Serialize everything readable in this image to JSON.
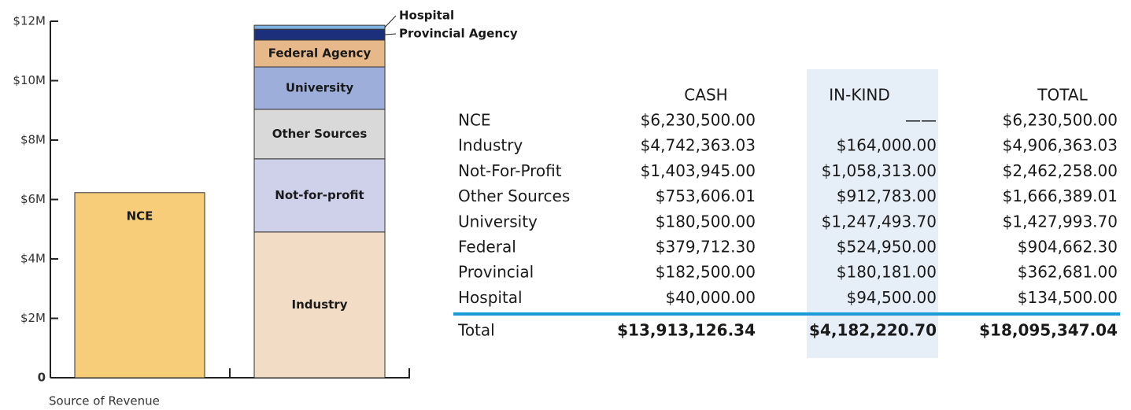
{
  "chart_data": {
    "type": "stacked_bar",
    "x_label": "Source of Revenue",
    "categories": [
      null,
      null
    ],
    "series": [
      {
        "name": "NCE",
        "color": "#f7cd7a",
        "values": [
          6230500.0,
          null
        ]
      },
      {
        "name": "Industry",
        "color": "#f2dcc6",
        "values": [
          null,
          4906363.03
        ]
      },
      {
        "name": "Not-for-profit",
        "color": "#cfd0ea",
        "values": [
          null,
          2462258.0
        ]
      },
      {
        "name": "Other Sources",
        "color": "#d9d9d9",
        "values": [
          null,
          1666389.01
        ]
      },
      {
        "name": "University",
        "color": "#9daedb",
        "values": [
          null,
          1427993.7
        ]
      },
      {
        "name": "Federal Agency",
        "color": "#e6b88a",
        "values": [
          null,
          904662.3
        ]
      },
      {
        "name": "Provincial Agency",
        "color": "#1c2f7a",
        "values": [
          null,
          362681.0
        ]
      },
      {
        "name": "Hospital",
        "color": "#7fb2e0",
        "values": [
          null,
          134500.0
        ]
      }
    ],
    "ylim": [
      0,
      12000000
    ],
    "yticks": [
      0,
      {
        "value": 2000000,
        "label": "$2M"
      },
      {
        "value": 4000000,
        "label": "$4M"
      },
      {
        "value": 6000000,
        "label": "$6M"
      },
      {
        "value": 8000000,
        "label": "$8M"
      },
      {
        "value": 10000000,
        "label": "$10M"
      },
      {
        "value": 12000000,
        "label": "$12M"
      }
    ]
  },
  "table": {
    "columns": [
      "CASH",
      "IN-KIND",
      "TOTAL"
    ],
    "rows": [
      [
        "NCE",
        "$6,230,500.00",
        "——",
        "$6,230,500.00"
      ],
      [
        "Industry",
        "$4,742,363.03",
        "$164,000.00",
        "$4,906,363.03"
      ],
      [
        "Not-For-Profit",
        "$1,403,945.00",
        "$1,058,313.00",
        "$2,462,258.00"
      ],
      [
        "Other Sources",
        "$753,606.01",
        "$912,783.00",
        "$1,666,389.01"
      ],
      [
        "University",
        "$180,500.00",
        "$1,247,493.70",
        "$1,427,993.70"
      ],
      [
        "Federal",
        "$379,712.30",
        "$524,950.00",
        "$904,662.30"
      ],
      [
        "Provincial",
        "$182,500.00",
        "$180,181.00",
        "$362,681.00"
      ],
      [
        "Hospital",
        "$40,000.00",
        "$94,500.00",
        "$134,500.00"
      ]
    ],
    "total": [
      "Total",
      "$13,913,126.34",
      "$4,182,220.70",
      "$18,095,347.04"
    ]
  }
}
